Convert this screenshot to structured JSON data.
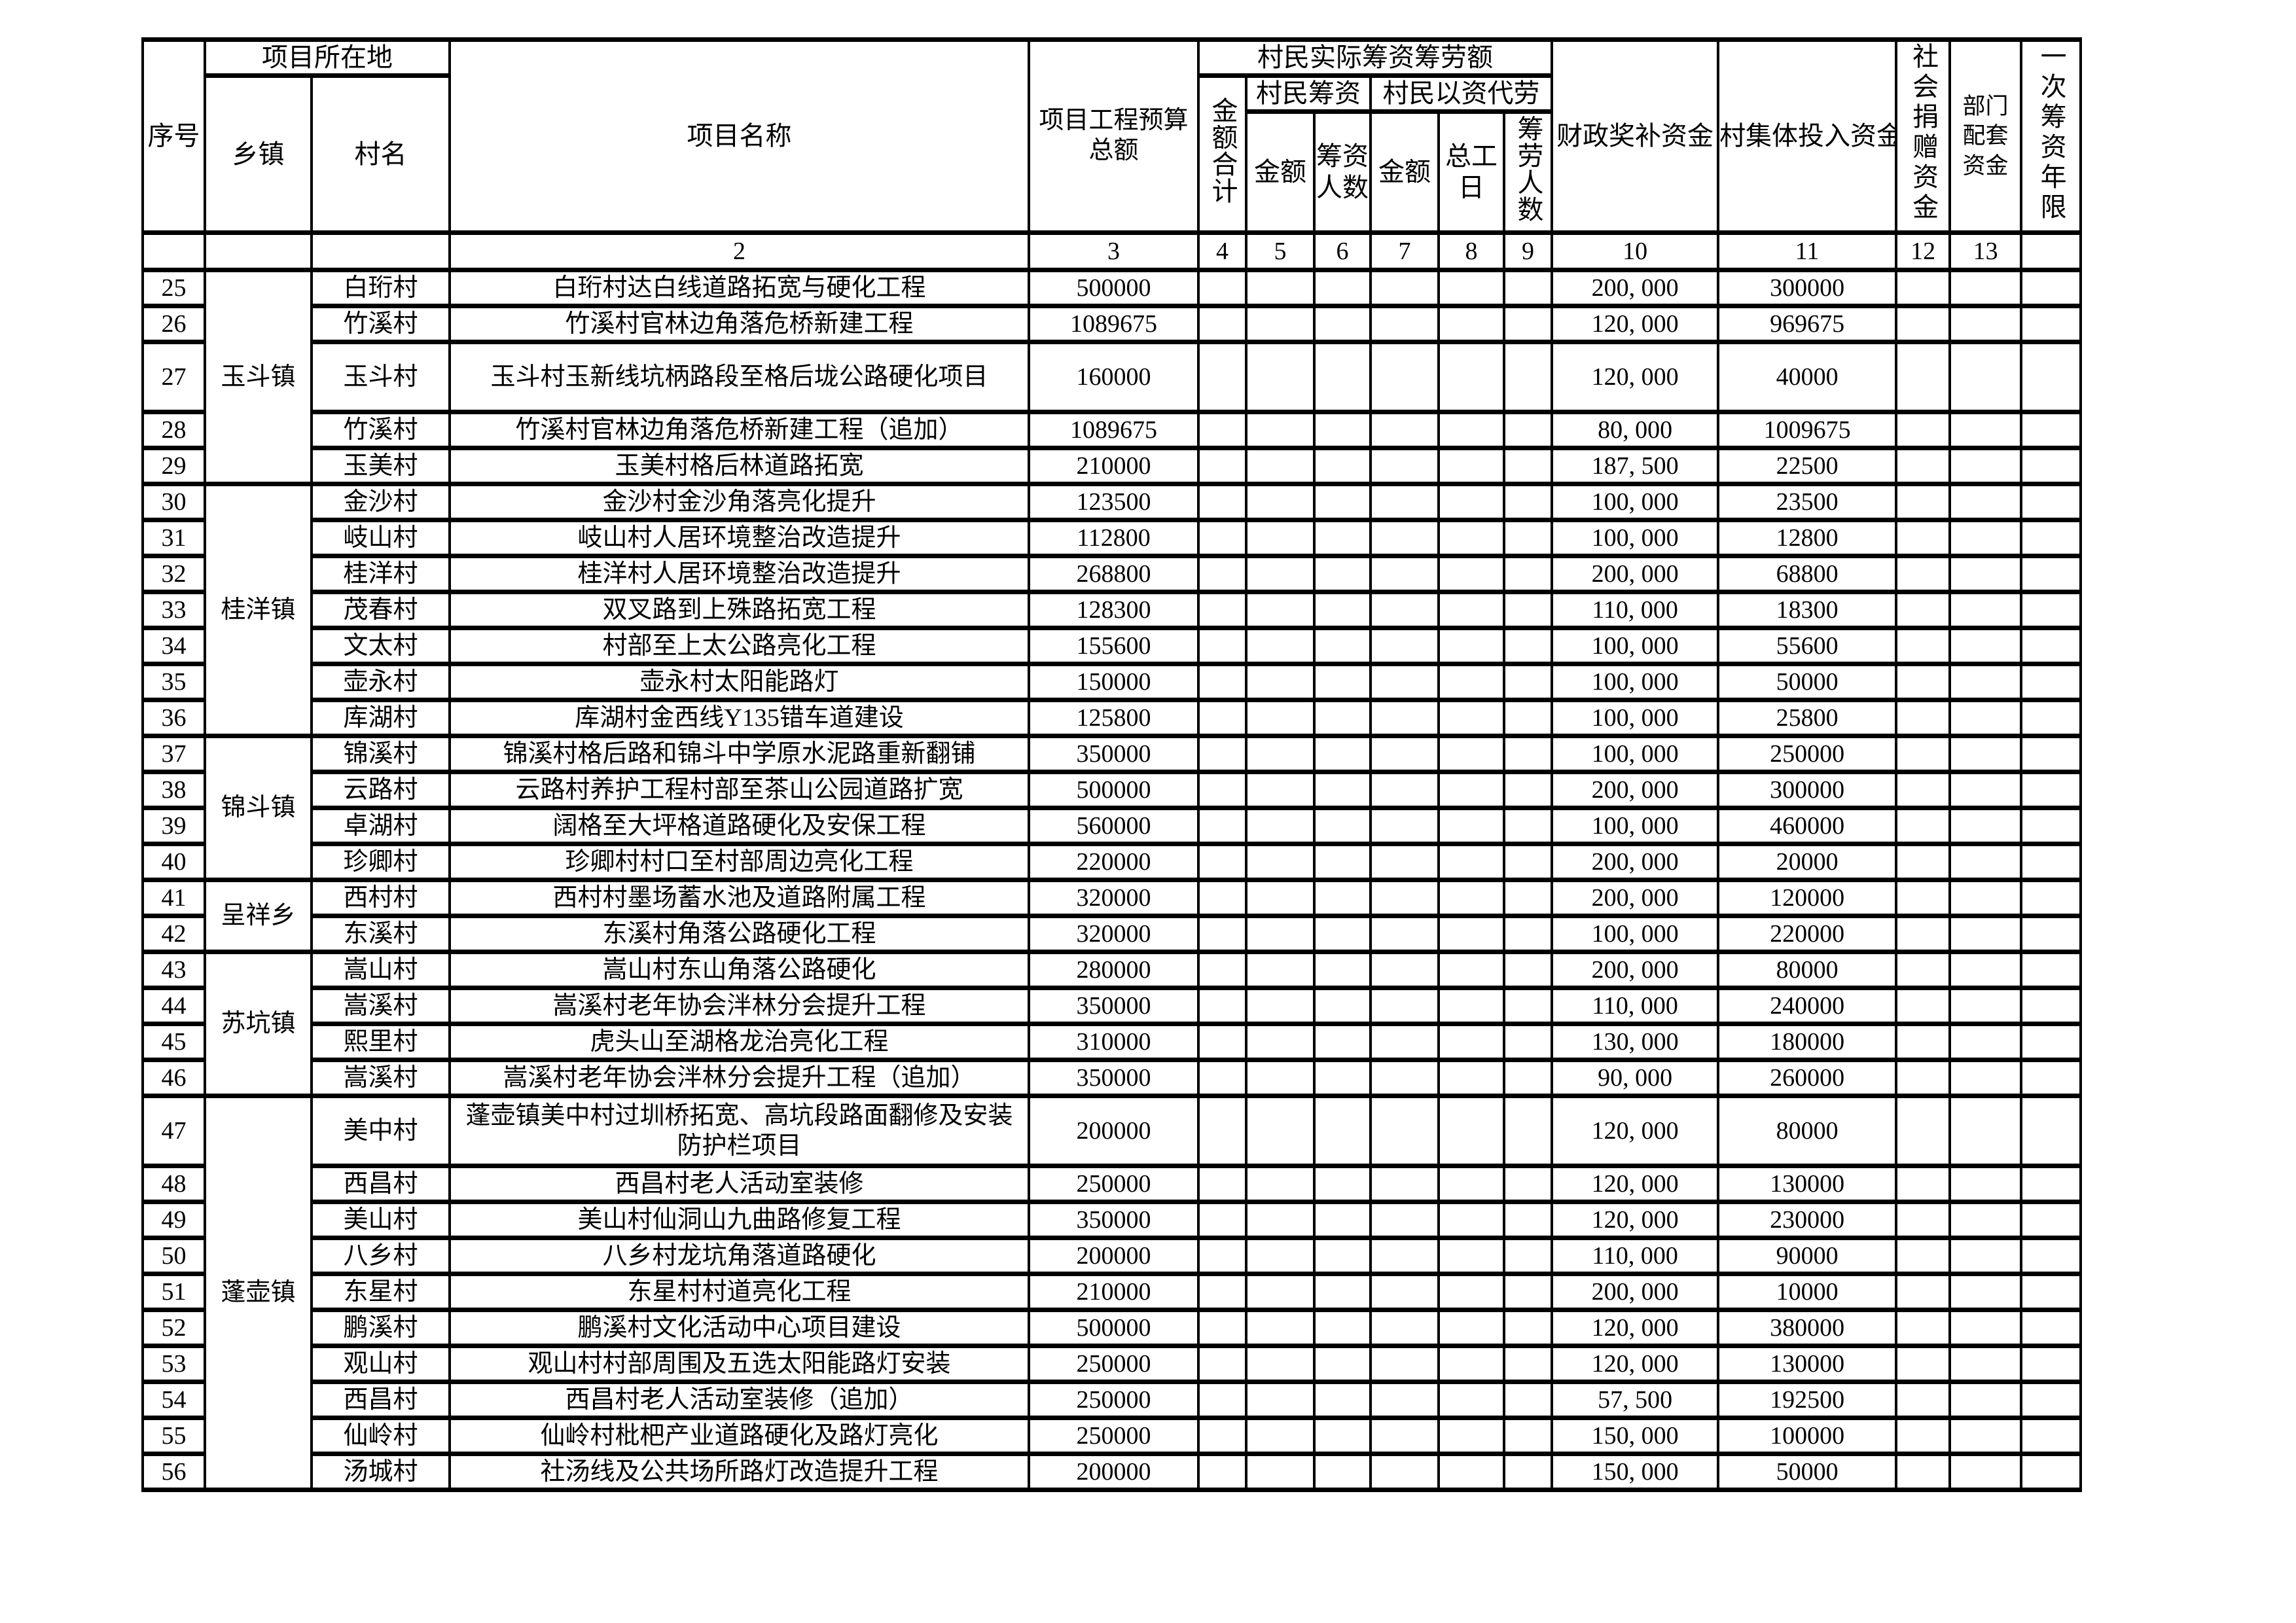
{
  "header": {
    "seq": "序号",
    "location": "项目所在地",
    "town": "乡镇",
    "village": "村名",
    "project": "项目名称",
    "budget": "项目工程预算总额",
    "raise_total": "村民实际筹资筹劳额",
    "amount_sum": "金额合计",
    "villager_raise": "村民筹资",
    "vr_amount": "金额",
    "vr_people": "筹资人数",
    "labor": "村民以资代劳",
    "lb_amount": "金额",
    "lb_days": "总工日",
    "lb_people": "筹劳人数",
    "fiscal": "财政奖补资金",
    "collective": "村集体投入资金",
    "donation": "社会捐赠资金",
    "dept": "部门配套资金",
    "term": "一次筹资年限"
  },
  "column_numbers": [
    "",
    "",
    "",
    "2",
    "3",
    "4",
    "5",
    "6",
    "7",
    "8",
    "9",
    "10",
    "11",
    "12",
    "13",
    ""
  ],
  "groups": [
    {
      "town": "玉斗镇",
      "rows": [
        {
          "seq": "25",
          "village": "白珩村",
          "name": "白珩村达白线道路拓宽与硬化工程",
          "budget": "500000",
          "fiscal": "200, 000",
          "collective": "300000",
          "tall": false
        },
        {
          "seq": "26",
          "village": "竹溪村",
          "name": "竹溪村官林边角落危桥新建工程",
          "budget": "1089675",
          "fiscal": "120, 000",
          "collective": "969675",
          "tall": false
        },
        {
          "seq": "27",
          "village": "玉斗村",
          "name": "玉斗村玉新线坑柄路段至格后垅公路硬化项目",
          "budget": "160000",
          "fiscal": "120, 000",
          "collective": "40000",
          "tall": true
        },
        {
          "seq": "28",
          "village": "竹溪村",
          "name": "竹溪村官林边角落危桥新建工程（追加）",
          "budget": "1089675",
          "fiscal": "80, 000",
          "collective": "1009675",
          "tall": false
        },
        {
          "seq": "29",
          "village": "玉美村",
          "name": "玉美村格后林道路拓宽",
          "budget": "210000",
          "fiscal": "187, 500",
          "collective": "22500",
          "tall": false
        }
      ]
    },
    {
      "town": "桂洋镇",
      "rows": [
        {
          "seq": "30",
          "village": "金沙村",
          "name": "金沙村金沙角落亮化提升",
          "budget": "123500",
          "fiscal": "100, 000",
          "collective": "23500",
          "tall": false
        },
        {
          "seq": "31",
          "village": "岐山村",
          "name": "岐山村人居环境整治改造提升",
          "budget": "112800",
          "fiscal": "100, 000",
          "collective": "12800",
          "tall": false
        },
        {
          "seq": "32",
          "village": "桂洋村",
          "name": "桂洋村人居环境整治改造提升",
          "budget": "268800",
          "fiscal": "200, 000",
          "collective": "68800",
          "tall": false
        },
        {
          "seq": "33",
          "village": "茂春村",
          "name": "双叉路到上殊路拓宽工程",
          "budget": "128300",
          "fiscal": "110, 000",
          "collective": "18300",
          "tall": false
        },
        {
          "seq": "34",
          "village": "文太村",
          "name": "村部至上太公路亮化工程",
          "budget": "155600",
          "fiscal": "100, 000",
          "collective": "55600",
          "tall": false
        },
        {
          "seq": "35",
          "village": "壶永村",
          "name": "壶永村太阳能路灯",
          "budget": "150000",
          "fiscal": "100, 000",
          "collective": "50000",
          "tall": false
        },
        {
          "seq": "36",
          "village": "库湖村",
          "name": "库湖村金西线Y135错车道建设",
          "budget": "125800",
          "fiscal": "100, 000",
          "collective": "25800",
          "tall": false
        }
      ]
    },
    {
      "town": "锦斗镇",
      "rows": [
        {
          "seq": "37",
          "village": "锦溪村",
          "name": "锦溪村格后路和锦斗中学原水泥路重新翻铺",
          "budget": "350000",
          "fiscal": "100, 000",
          "collective": "250000",
          "tall": false
        },
        {
          "seq": "38",
          "village": "云路村",
          "name": "云路村养护工程村部至茶山公园道路扩宽",
          "budget": "500000",
          "fiscal": "200, 000",
          "collective": "300000",
          "tall": false
        },
        {
          "seq": "39",
          "village": "卓湖村",
          "name": "阔格至大坪格道路硬化及安保工程",
          "budget": "560000",
          "fiscal": "100, 000",
          "collective": "460000",
          "tall": false
        },
        {
          "seq": "40",
          "village": "珍卿村",
          "name": "珍卿村村口至村部周边亮化工程",
          "budget": "220000",
          "fiscal": "200, 000",
          "collective": "20000",
          "tall": false
        }
      ]
    },
    {
      "town": "呈祥乡",
      "rows": [
        {
          "seq": "41",
          "village": "西村村",
          "name": "西村村墨场蓄水池及道路附属工程",
          "budget": "320000",
          "fiscal": "200, 000",
          "collective": "120000",
          "tall": false
        },
        {
          "seq": "42",
          "village": "东溪村",
          "name": "东溪村角落公路硬化工程",
          "budget": "320000",
          "fiscal": "100, 000",
          "collective": "220000",
          "tall": false
        }
      ]
    },
    {
      "town": "苏坑镇",
      "rows": [
        {
          "seq": "43",
          "village": "嵩山村",
          "name": "嵩山村东山角落公路硬化",
          "budget": "280000",
          "fiscal": "200, 000",
          "collective": "80000",
          "tall": false
        },
        {
          "seq": "44",
          "village": "嵩溪村",
          "name": "嵩溪村老年协会泮林分会提升工程",
          "budget": "350000",
          "fiscal": "110, 000",
          "collective": "240000",
          "tall": false
        },
        {
          "seq": "45",
          "village": "熙里村",
          "name": "虎头山至湖格龙治亮化工程",
          "budget": "310000",
          "fiscal": "130, 000",
          "collective": "180000",
          "tall": false
        },
        {
          "seq": "46",
          "village": "嵩溪村",
          "name": "嵩溪村老年协会泮林分会提升工程（追加）",
          "budget": "350000",
          "fiscal": "90, 000",
          "collective": "260000",
          "tall": false
        }
      ]
    },
    {
      "town": "蓬壶镇",
      "rows": [
        {
          "seq": "47",
          "village": "美中村",
          "name": "蓬壶镇美中村过圳桥拓宽、高坑段路面翻修及安装防护栏项目",
          "budget": "200000",
          "fiscal": "120, 000",
          "collective": "80000",
          "tall": true
        },
        {
          "seq": "48",
          "village": "西昌村",
          "name": "西昌村老人活动室装修",
          "budget": "250000",
          "fiscal": "120, 000",
          "collective": "130000",
          "tall": false
        },
        {
          "seq": "49",
          "village": "美山村",
          "name": "美山村仙洞山九曲路修复工程",
          "budget": "350000",
          "fiscal": "120, 000",
          "collective": "230000",
          "tall": false
        },
        {
          "seq": "50",
          "village": "八乡村",
          "name": "八乡村龙坑角落道路硬化",
          "budget": "200000",
          "fiscal": "110, 000",
          "collective": "90000",
          "tall": false
        },
        {
          "seq": "51",
          "village": "东星村",
          "name": "东星村村道亮化工程",
          "budget": "210000",
          "fiscal": "200, 000",
          "collective": "10000",
          "tall": false
        },
        {
          "seq": "52",
          "village": "鹏溪村",
          "name": "鹏溪村文化活动中心项目建设",
          "budget": "500000",
          "fiscal": "120, 000",
          "collective": "380000",
          "tall": false
        },
        {
          "seq": "53",
          "village": "观山村",
          "name": "观山村村部周围及五选太阳能路灯安装",
          "budget": "250000",
          "fiscal": "120, 000",
          "collective": "130000",
          "tall": false
        },
        {
          "seq": "54",
          "village": "西昌村",
          "name": "西昌村老人活动室装修（追加）",
          "budget": "250000",
          "fiscal": "57, 500",
          "collective": "192500",
          "tall": false
        },
        {
          "seq": "55",
          "village": "仙岭村",
          "name": "仙岭村枇杷产业道路硬化及路灯亮化",
          "budget": "250000",
          "fiscal": "150, 000",
          "collective": "100000",
          "tall": false
        },
        {
          "seq": "56",
          "village": "汤城村",
          "name": "社汤线及公共场所路灯改造提升工程",
          "budget": "200000",
          "fiscal": "150, 000",
          "collective": "50000",
          "tall": false
        }
      ]
    }
  ]
}
